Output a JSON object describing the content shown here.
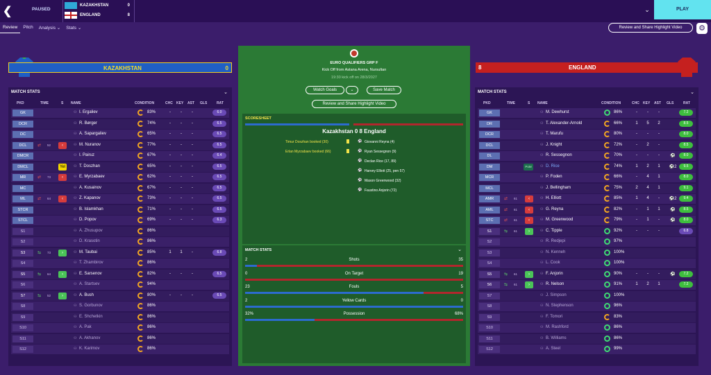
{
  "topbar": {
    "status": "PAUSED",
    "play_label": "PLAY"
  },
  "scoreboard": [
    {
      "team": "KAZAKHSTAN",
      "score": "0"
    },
    {
      "team": "ENGLAND",
      "score": "8"
    }
  ],
  "nav": [
    "Review",
    "Pitch",
    "Analysis ⌄",
    "Stats ⌄"
  ],
  "review_button": "Review and Share Highlight Video",
  "home_team": {
    "name": "KAZAKHSTAN",
    "score": "0"
  },
  "away_team": {
    "name": "ENGLAND",
    "score": "8"
  },
  "match_info": {
    "competition": "EURO QUALIFIERS GRP F",
    "kickoff": "Kick Off from Astana Arena, Nursultan",
    "datetime": "19:30 kick off on 28/3/2027",
    "watch_goals": "Watch Goals",
    "save_match": "Save Match",
    "review_video": "Review and Share Highlight Video"
  },
  "scoresheet": {
    "title": "SCORESHEET",
    "line": "Kazakhstan 0 8 England",
    "home_events": [
      "Timur Doszhan booked (30)",
      "Erlan Myrzabaev booked (66)"
    ],
    "away_events": [
      "Giovanni Reyna (4)",
      "Ryan Sessegnon (9)",
      "Declan Rice (17, 89)",
      "Harvey Elliott (25, pen 57)",
      "Mason Greenwood (32)",
      "Faustino Anjorin (72)"
    ]
  },
  "match_stats": {
    "title": "MATCH STATS",
    "rows": [
      {
        "label": "Shots",
        "home": "2",
        "away": "35",
        "home_frac": 0.054
      },
      {
        "label": "On Target",
        "home": "0",
        "away": "19",
        "home_frac": 0.0
      },
      {
        "label": "Fouls",
        "home": "23",
        "away": "5",
        "home_frac": 0.82
      },
      {
        "label": "Yellow Cards",
        "home": "2",
        "away": "0",
        "home_frac": 1.0
      },
      {
        "label": "Possession",
        "home": "32%",
        "away": "68%",
        "home_frac": 0.32
      }
    ]
  },
  "panel_title": "MATCH STATS",
  "columns": {
    "pkd": "PKD",
    "time": "TIME",
    "s": "S",
    "name": "NAME",
    "condition": "CONDITION",
    "chc": "CHC",
    "key": "KEY",
    "ast": "AST",
    "gls": "GLS",
    "rat": "RAT"
  },
  "home_players": [
    {
      "pos": "GK",
      "name": "I. Ergaliev",
      "cond": "83%",
      "chc": "-",
      "key": "-",
      "ast": "-",
      "gls": "",
      "rat": "6.0"
    },
    {
      "pos": "DCR",
      "name": "R. Børger",
      "cond": "74%",
      "chc": "-",
      "key": "-",
      "ast": "-",
      "gls": "",
      "rat": "6.5"
    },
    {
      "pos": "DC",
      "name": "A. Sapargaliev",
      "cond": "65%",
      "chc": "-",
      "key": "-",
      "ast": "-",
      "gls": "",
      "rat": "6.5"
    },
    {
      "pos": "DCL",
      "name": "M. Nuranov",
      "cond": "77%",
      "chc": "-",
      "key": "-",
      "ast": "-",
      "gls": "",
      "rat": "6.5",
      "time": "52",
      "out": true
    },
    {
      "pos": "DMCR",
      "name": "I. Pairuz",
      "cond": "67%",
      "chc": "-",
      "key": "-",
      "ast": "-",
      "gls": "",
      "rat": "6.4"
    },
    {
      "pos": "DMCL",
      "name": "T. Doszhan",
      "cond": "65%",
      "chc": "-",
      "key": "-",
      "ast": "-",
      "gls": "",
      "rat": "6.5",
      "card": "Yel"
    },
    {
      "pos": "MR",
      "name": "E. Myrzabaev",
      "cond": "62%",
      "chc": "-",
      "key": "-",
      "ast": "-",
      "gls": "",
      "rat": "6.5",
      "time": "73",
      "out": true
    },
    {
      "pos": "MC",
      "name": "A. Kusainov",
      "cond": "67%",
      "chc": "-",
      "key": "-",
      "ast": "-",
      "gls": "",
      "rat": "6.5"
    },
    {
      "pos": "ML",
      "name": "Z. Kapanov",
      "cond": "73%",
      "chc": "-",
      "key": "-",
      "ast": "-",
      "gls": "",
      "rat": "6.5",
      "time": "64",
      "out": true
    },
    {
      "pos": "STCR",
      "name": "B. Islamkhan",
      "cond": "71%",
      "chc": "-",
      "key": "-",
      "ast": "-",
      "gls": "",
      "rat": "6.5"
    },
    {
      "pos": "STCL",
      "name": "D. Popov",
      "cond": "69%",
      "chc": "-",
      "key": "-",
      "ast": "-",
      "gls": "",
      "rat": "6.3"
    },
    {
      "pos": "S1",
      "name": "A. Zhusupov",
      "cond": "86%",
      "sub": true
    },
    {
      "pos": "S2",
      "name": "D. Krasotin",
      "cond": "86%",
      "sub": true
    },
    {
      "pos": "S3",
      "name": "M. Taubai",
      "cond": "85%",
      "chc": "1",
      "key": "1",
      "ast": "-",
      "gls": "",
      "rat": "6.8",
      "time": "73",
      "in": true
    },
    {
      "pos": "S4",
      "name": "T. Zhambirov",
      "cond": "86%",
      "sub": true
    },
    {
      "pos": "S5",
      "name": "E. Sarsenov",
      "cond": "82%",
      "chc": "-",
      "key": "-",
      "ast": "-",
      "gls": "",
      "rat": "6.5",
      "time": "64",
      "in": true
    },
    {
      "pos": "S6",
      "name": "A. Startsev",
      "cond": "94%",
      "sub": true
    },
    {
      "pos": "S7",
      "name": "A. Bush",
      "cond": "80%",
      "chc": "-",
      "key": "-",
      "ast": "-",
      "gls": "",
      "rat": "6.5",
      "time": "52",
      "in": true
    },
    {
      "pos": "S8",
      "name": "S. Gorbunov",
      "cond": "86%",
      "sub": true
    },
    {
      "pos": "S9",
      "name": "E. Shchetkin",
      "cond": "86%",
      "sub": true
    },
    {
      "pos": "S10",
      "name": "A. Pak",
      "cond": "86%",
      "sub": true
    },
    {
      "pos": "S11",
      "name": "A. Akhanov",
      "cond": "86%",
      "sub": true
    },
    {
      "pos": "S12",
      "name": "K. Karimov",
      "cond": "86%",
      "sub": true
    }
  ],
  "away_players": [
    {
      "pos": "GK",
      "name": "M. Dewhurst",
      "cond": "86%",
      "chc": "-",
      "key": "-",
      "ast": "-",
      "gls": "",
      "rat": "7.2",
      "rg": true,
      "c": "g"
    },
    {
      "pos": "DR",
      "name": "T. Alexander-Arnold",
      "cond": "66%",
      "chc": "1",
      "key": "5",
      "ast": "2",
      "gls": "",
      "rat": "8.5",
      "rg": true
    },
    {
      "pos": "DCR",
      "name": "T. Marufu",
      "cond": "80%",
      "chc": "-",
      "key": "-",
      "ast": "-",
      "gls": "",
      "rat": "8.0",
      "rg": true
    },
    {
      "pos": "DCL",
      "name": "J. Knight",
      "cond": "72%",
      "chc": "-",
      "key": "2",
      "ast": "-",
      "gls": "",
      "rat": "8.5",
      "rg": true
    },
    {
      "pos": "DL",
      "name": "R. Sessegnon",
      "cond": "70%",
      "chc": "-",
      "key": "-",
      "ast": "-",
      "gls": "⚽",
      "rat": "8.0",
      "rg": true
    },
    {
      "pos": "DM",
      "name": "D. Rice",
      "cond": "74%",
      "chc": "1",
      "key": "2",
      "ast": "1",
      "gls": "⚽2",
      "rat": "9.5",
      "rg": true,
      "pom": "PoM"
    },
    {
      "pos": "MCR",
      "name": "P. Foden",
      "cond": "66%",
      "chc": "-",
      "key": "4",
      "ast": "1",
      "gls": "",
      "rat": "8.0",
      "rg": true
    },
    {
      "pos": "MCL",
      "name": "J. Bellingham",
      "cond": "75%",
      "chc": "2",
      "key": "4",
      "ast": "1",
      "gls": "",
      "rat": "9.1",
      "rg": true
    },
    {
      "pos": "AMR",
      "name": "H. Elliott",
      "cond": "85%",
      "chc": "1",
      "key": "4",
      "ast": "-",
      "gls": "⚽2",
      "rat": "9.4",
      "rg": true,
      "time": "61",
      "out": true
    },
    {
      "pos": "AML",
      "name": "G. Reyna",
      "cond": "82%",
      "chc": "-",
      "key": "1",
      "ast": "1",
      "gls": "⚽",
      "rat": "8.5",
      "rg": true,
      "time": "61",
      "out": true
    },
    {
      "pos": "STC",
      "name": "M. Greenwood",
      "cond": "79%",
      "chc": "-",
      "key": "1",
      "ast": "-",
      "gls": "⚽",
      "rat": "8.0",
      "rg": true,
      "time": "61",
      "out": true
    },
    {
      "pos": "S1",
      "name": "C. Tipple",
      "cond": "92%",
      "chc": "-",
      "key": "-",
      "ast": "-",
      "gls": "",
      "rat": "6.8",
      "time": "61",
      "in": true,
      "c": "g"
    },
    {
      "pos": "S2",
      "name": "R. Redjepi",
      "cond": "97%",
      "sub": true,
      "c": "g"
    },
    {
      "pos": "S3",
      "name": "N. Kenneh",
      "cond": "100%",
      "sub": true,
      "c": "g"
    },
    {
      "pos": "S4",
      "name": "L. Cook",
      "cond": "100%",
      "sub": true,
      "c": "g"
    },
    {
      "pos": "S5",
      "name": "F. Anjorin",
      "cond": "90%",
      "chc": "-",
      "key": "-",
      "ast": "-",
      "gls": "⚽",
      "rat": "7.2",
      "rg": true,
      "time": "61",
      "in": true,
      "c": "g"
    },
    {
      "pos": "S6",
      "name": "R. Nelson",
      "cond": "91%",
      "chc": "1",
      "key": "2",
      "ast": "1",
      "gls": "",
      "rat": "7.2",
      "rg": true,
      "time": "61",
      "in": true,
      "c": "g"
    },
    {
      "pos": "S7",
      "name": "J. Simpson",
      "cond": "100%",
      "sub": true,
      "c": "g"
    },
    {
      "pos": "S8",
      "name": "N. Stephenson",
      "cond": "96%",
      "sub": true,
      "c": "g"
    },
    {
      "pos": "S9",
      "name": "F. Tomori",
      "cond": "83%",
      "sub": true
    },
    {
      "pos": "S10",
      "name": "M. Rashford",
      "cond": "86%",
      "sub": true,
      "c": "g"
    },
    {
      "pos": "S11",
      "name": "B. Williams",
      "cond": "86%",
      "sub": true,
      "c": "g"
    },
    {
      "pos": "S12",
      "name": "A. Steel",
      "cond": "99%",
      "sub": true,
      "c": "g"
    }
  ],
  "colors": {
    "home": "#1f5fc5",
    "away": "#c5201f",
    "background": "#3b1d6b",
    "pitch": "#2b7a35"
  }
}
